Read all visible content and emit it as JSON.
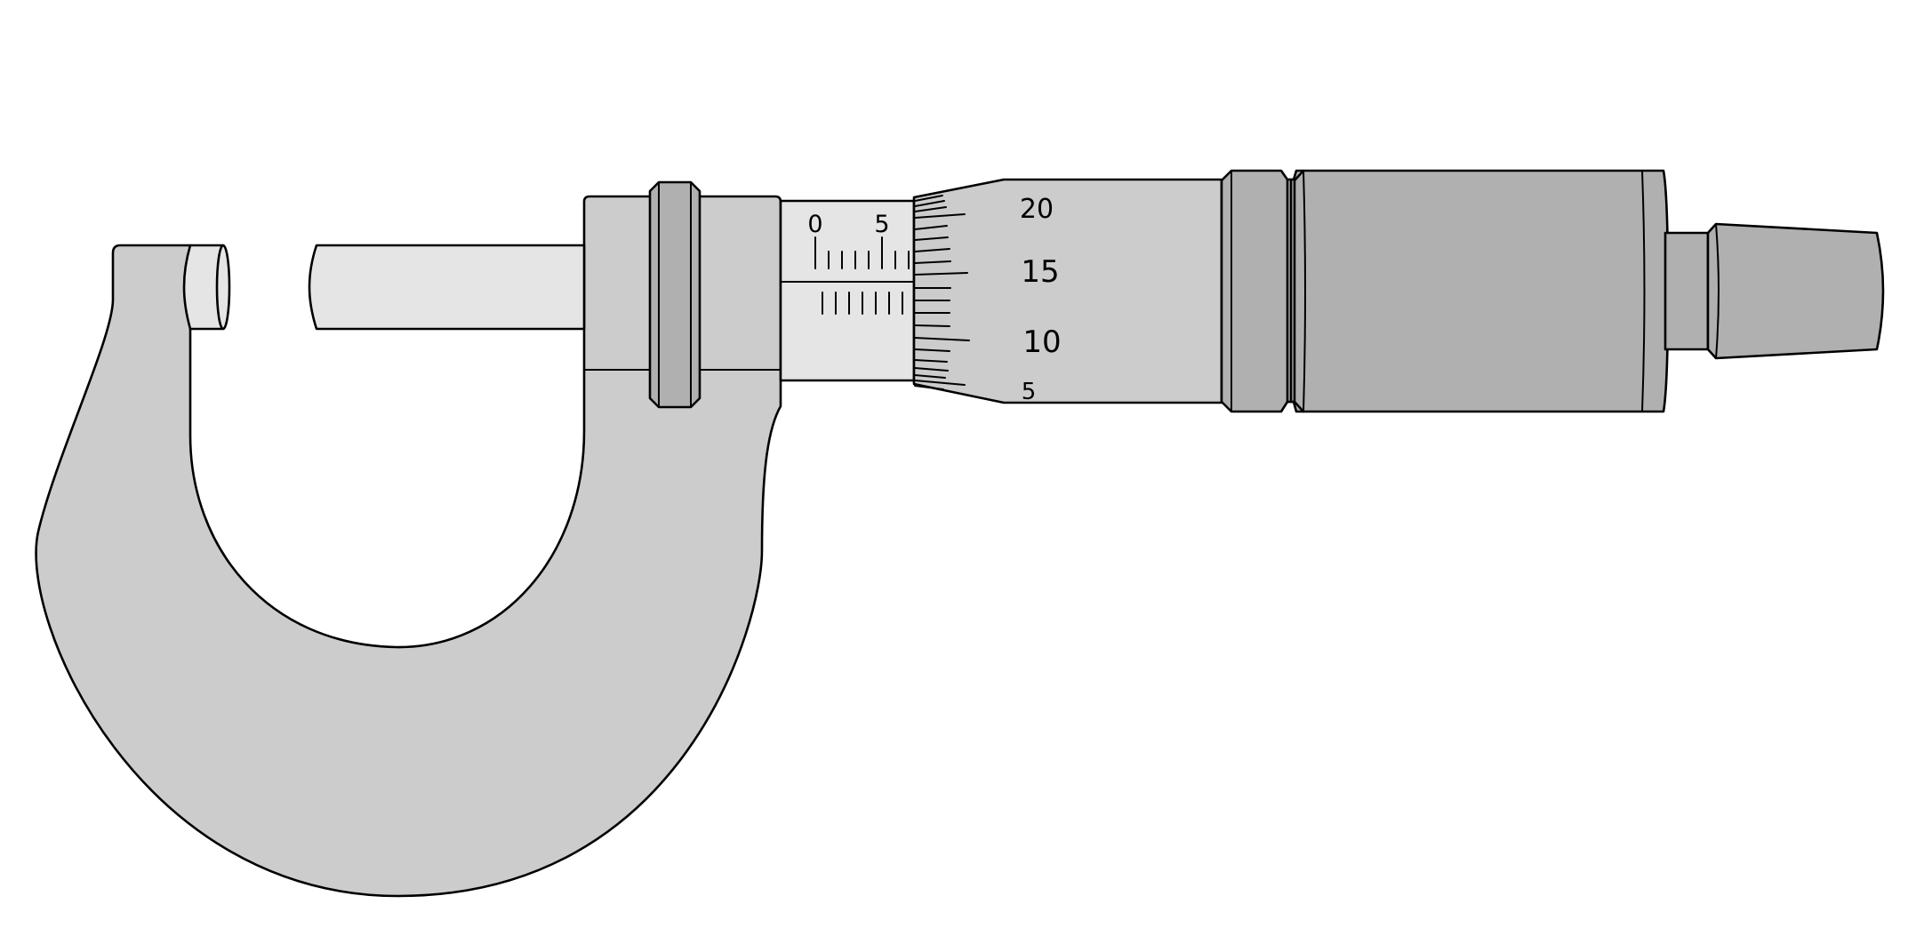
{
  "colors": {
    "frame": "#cccccc",
    "anvil": "#e5e5e5",
    "spindle": "#e5e5e5",
    "sleeve": "#e5e5e5",
    "thimble": "#cccccc",
    "ratchet": "#b0b0b0",
    "lock_ring": "#b0b0b0",
    "outline": "#000000"
  },
  "sleeve_scale": {
    "labels": [
      "0",
      "5"
    ]
  },
  "thimble_scale": {
    "labels": [
      "20",
      "15",
      "10",
      "5"
    ]
  }
}
